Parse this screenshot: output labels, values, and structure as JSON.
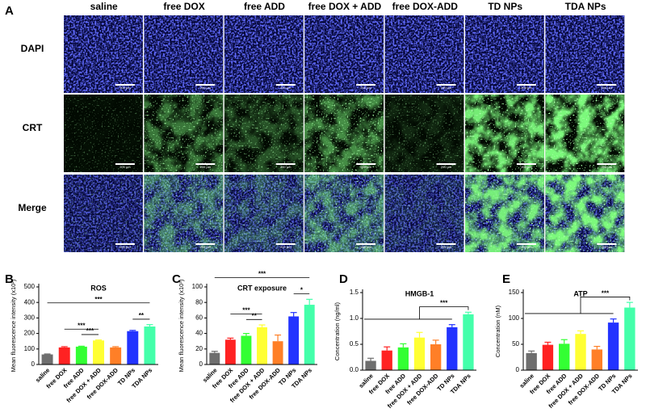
{
  "figure": {
    "panel": "A",
    "columns": [
      "saline",
      "free DOX",
      "free ADD",
      "free DOX + ADD",
      "free DOX-ADD",
      "TD NPs",
      "TDA NPs"
    ],
    "rows": [
      "DAPI",
      "CRT",
      "Merge"
    ],
    "scale_bar": "200 μm"
  },
  "chart_data": [
    {
      "type": "bar",
      "panel": "B",
      "title": "ROS",
      "ylabel": "Mean fluorescence intensity (x10²)",
      "categories": [
        "saline",
        "free DOX",
        "free ADD",
        "free DOX + ADD",
        "free DOX-ADD",
        "TD NPs",
        "TDA NPs"
      ],
      "values": [
        65,
        110,
        115,
        155,
        110,
        215,
        245
      ],
      "errors": [
        3,
        5,
        3,
        3,
        5,
        5,
        12
      ],
      "colors": [
        "#6e6e6e",
        "#ff2222",
        "#33ff33",
        "#ffff33",
        "#ff7f27",
        "#2233ff",
        "#44ffaa"
      ],
      "ylim": [
        0,
        500
      ],
      "yticks": [
        0,
        100,
        200,
        300,
        400,
        500
      ],
      "brackets": [
        {
          "between": [
            [
              2,
              2
            ],
            [
              3,
              3
            ]
          ],
          "label": "***"
        },
        {
          "between": [
            [
              1,
              1
            ],
            [
              3,
              3
            ]
          ],
          "label": "***"
        },
        {
          "between": [
            [
              5,
              5
            ],
            [
              6,
              6
            ]
          ],
          "label": "**"
        },
        {
          "between": [
            [
              0,
              0
            ],
            [
              6,
              6
            ]
          ],
          "label": "***"
        }
      ]
    },
    {
      "type": "bar",
      "panel": "C",
      "title": "CRT exposure",
      "ylabel": "Mean fluorescence intensity (x10³)",
      "categories": [
        "saline",
        "free DOX",
        "free ADD",
        "free DOX + ADD",
        "free DOX-ADD",
        "TD NPs",
        "TDA NPs"
      ],
      "values": [
        15,
        32,
        37,
        48,
        30,
        62,
        77
      ],
      "errors": [
        2,
        2,
        3,
        3,
        8,
        5,
        7
      ],
      "colors": [
        "#6e6e6e",
        "#ff2222",
        "#33ff33",
        "#ffff33",
        "#ff7f27",
        "#2233ff",
        "#44ffaa"
      ],
      "ylim": [
        0,
        100
      ],
      "yticks": [
        0,
        20,
        40,
        60,
        80,
        100
      ],
      "brackets": [
        {
          "between": [
            [
              2,
              2
            ],
            [
              3,
              3
            ]
          ],
          "label": "**"
        },
        {
          "between": [
            [
              1,
              1
            ],
            [
              3,
              3
            ]
          ],
          "label": "***"
        },
        {
          "between": [
            [
              5,
              5
            ],
            [
              6,
              6
            ]
          ],
          "label": "*"
        },
        {
          "between": [
            [
              0,
              0
            ],
            [
              6,
              6
            ]
          ],
          "label": "***"
        }
      ]
    },
    {
      "type": "bar",
      "panel": "D",
      "title": "HMGB-1",
      "ylabel": "Concentration (ng/ml)",
      "categories": [
        "saline",
        "free DOX",
        "free ADD",
        "free DOX + ADD",
        "free DOX-ADD",
        "TD NPs",
        "TDA NPs"
      ],
      "values": [
        0.18,
        0.38,
        0.44,
        0.63,
        0.5,
        0.83,
        1.08
      ],
      "errors": [
        0.05,
        0.07,
        0.07,
        0.1,
        0.08,
        0.05,
        0.04
      ],
      "colors": [
        "#6e6e6e",
        "#ff2222",
        "#33ff33",
        "#ffff33",
        "#ff7f27",
        "#2233ff",
        "#44ffaa"
      ],
      "ylim": [
        0,
        1.5
      ],
      "yticks": [
        {
          "value": 0,
          "label": "0.0"
        },
        0.5,
        {
          "value": 1,
          "label": "1.0"
        },
        1.5
      ],
      "brackets": [
        {
          "between": [
            [
              0,
              5
            ],
            [
              6,
              6
            ]
          ],
          "label": "***"
        }
      ]
    },
    {
      "type": "bar",
      "panel": "E",
      "title": "ATP",
      "ylabel": "Concentration (nM)",
      "categories": [
        "saline",
        "free DOX",
        "free ADD",
        "free DOX + ADD",
        "free DOX-ADD",
        "TD NPs",
        "TDA NPs"
      ],
      "values": [
        33,
        49,
        51,
        70,
        40,
        92,
        121
      ],
      "errors": [
        4,
        5,
        8,
        6,
        6,
        7,
        10
      ],
      "colors": [
        "#6e6e6e",
        "#ff2222",
        "#33ff33",
        "#ffff33",
        "#ff7f27",
        "#2233ff",
        "#44ffaa"
      ],
      "ylim": [
        0,
        150
      ],
      "yticks": [
        0,
        50,
        100,
        150
      ],
      "brackets": [
        {
          "between": [
            [
              0,
              5
            ],
            [
              6,
              6
            ]
          ],
          "label": "***"
        }
      ]
    }
  ]
}
